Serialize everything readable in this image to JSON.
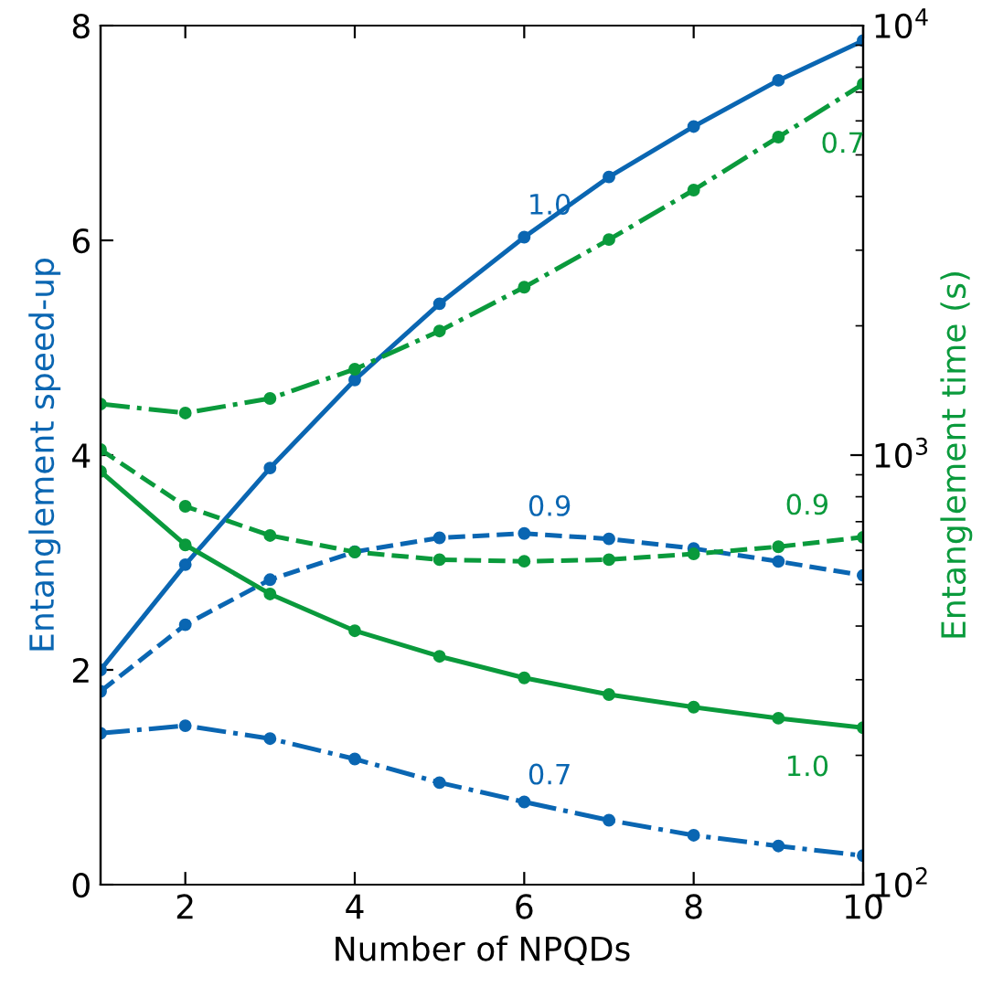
{
  "chart_data": {
    "type": "line",
    "xlabel": "Number of NPQDs",
    "ylabel": "Entanglement speed-up",
    "y2label": "Entanglement time (s)",
    "x": [
      1,
      2,
      3,
      4,
      5,
      6,
      7,
      8,
      9,
      10
    ],
    "xlim": [
      1,
      10
    ],
    "xticks": [
      2,
      4,
      6,
      8,
      10
    ],
    "ylim": [
      0,
      8
    ],
    "yticks": [
      0,
      2,
      4,
      6,
      8
    ],
    "log": "y2",
    "y2lim": [
      100,
      10000
    ],
    "y2ticks": [
      {
        "value": 100,
        "label": "10$^{2}$"
      },
      {
        "value": 1000,
        "label": "10$^{3}$"
      },
      {
        "value": 10000,
        "label": "10$^{4}$"
      }
    ],
    "marker": "circle",
    "grid": false,
    "legend": false,
    "series": [
      {
        "name": "1.0",
        "color": "#0a66b2",
        "line_style": "solid",
        "values": [
          2.0,
          2.98,
          3.88,
          4.7,
          5.41,
          6.03,
          6.59,
          7.06,
          7.49,
          7.86
        ]
      },
      {
        "name": "0.9",
        "color": "#0a66b2",
        "line_style": "dashed",
        "values": [
          1.8,
          2.42,
          2.84,
          3.1,
          3.23,
          3.27,
          3.22,
          3.13,
          3.01,
          2.88
        ]
      },
      {
        "name": "0.7",
        "color": "#0a66b2",
        "line_style": "dashdot",
        "values": [
          1.41,
          1.48,
          1.36,
          1.17,
          0.95,
          0.77,
          0.6,
          0.46,
          0.36,
          0.27
        ]
      },
      {
        "name": "1.0",
        "color": "#0a9a3c",
        "line_style": "solid",
        "axis": "y2",
        "values": [
          916,
          618,
          475,
          390,
          340,
          303,
          277,
          259,
          244,
          232
        ]
      },
      {
        "name": "0.9",
        "color": "#0a9a3c",
        "line_style": "dashed",
        "axis": "y2",
        "values": [
          1030,
          760,
          650,
          595,
          571,
          566,
          571,
          589,
          612,
          644
        ]
      },
      {
        "name": "0.7",
        "color": "#0a9a3c",
        "line_style": "dashdot",
        "axis": "y2",
        "values": [
          1315,
          1253,
          1355,
          1585,
          1945,
          2460,
          3175,
          4140,
          5500,
          7310
        ]
      }
    ]
  }
}
